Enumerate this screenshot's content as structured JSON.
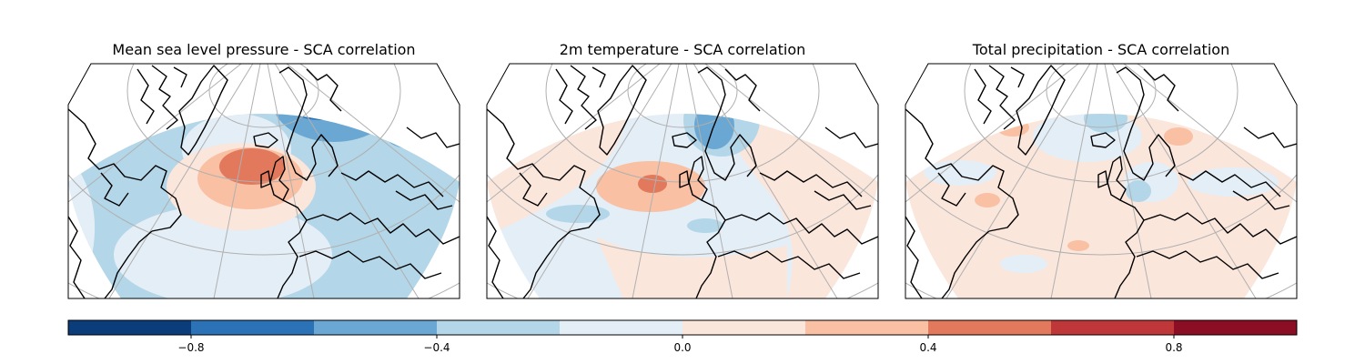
{
  "panels": [
    {
      "title": "Mean sea level pressure - SCA correlation",
      "variable": "mslp"
    },
    {
      "title": "2m temperature - SCA correlation",
      "variable": "t2m"
    },
    {
      "title": "Total precipitation - SCA correlation",
      "variable": "tp"
    }
  ],
  "colorbar": {
    "colormap": "RdBu_r",
    "range": [
      -1.0,
      1.0
    ],
    "levels": [
      -1.0,
      -0.8,
      -0.6,
      -0.4,
      -0.2,
      0.0,
      0.2,
      0.4,
      0.6,
      0.8,
      1.0
    ],
    "colors": [
      "#053061",
      "#2166ac",
      "#4393c3",
      "#92c5de",
      "#d1e5f0",
      "#f7f7f7",
      "#fddbc7",
      "#f4a582",
      "#d6604d",
      "#b2182b",
      "#67001f"
    ],
    "bin_colors": [
      "#0b3d7a",
      "#2c72b6",
      "#6aa8d3",
      "#b3d6e8",
      "#e4eef6",
      "#fbe6dc",
      "#f9c0a3",
      "#e2795d",
      "#c0373a",
      "#8c0e25"
    ],
    "tick_labels": [
      "−0.8",
      "−0.4",
      "0.0",
      "0.4",
      "0.8"
    ],
    "tick_values": [
      -0.8,
      -0.4,
      0.0,
      0.4,
      0.8
    ]
  }
}
